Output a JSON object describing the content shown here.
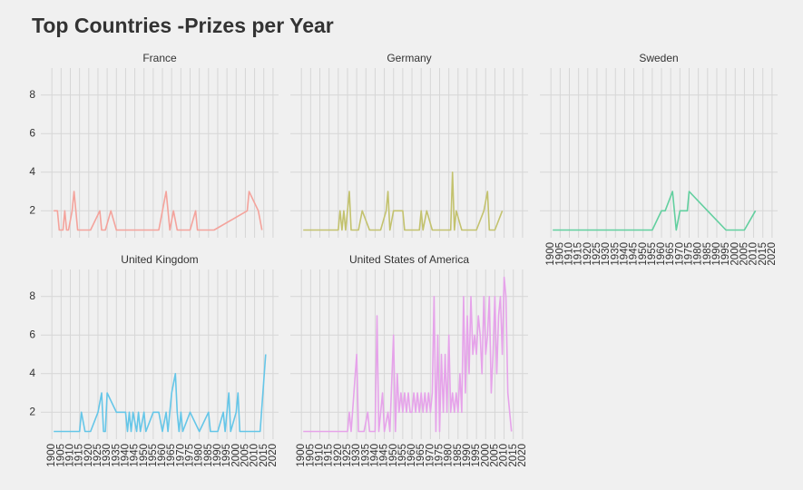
{
  "title": "Top Countries -Prizes per Year",
  "chart_data": [
    {
      "type": "line",
      "title": "France",
      "color": "#f4a39c",
      "x": [
        1901,
        1903,
        1904,
        1906,
        1907,
        1908,
        1909,
        1911,
        1912,
        1913,
        1914,
        1920,
        1921,
        1926,
        1927,
        1928,
        1929,
        1932,
        1935,
        1958,
        1962,
        1964,
        1966,
        1968,
        1970,
        1975,
        1978,
        1979,
        1983,
        1988,
        2006,
        2007,
        2012,
        2014
      ],
      "values": [
        2,
        2,
        1,
        1,
        2,
        1,
        1,
        2,
        3,
        2,
        1,
        1,
        1,
        2,
        1,
        1,
        1,
        2,
        1,
        1,
        3,
        1,
        2,
        1,
        1,
        1,
        2,
        1,
        1,
        1,
        2,
        3,
        2,
        1
      ],
      "xlim": [
        1894,
        2023
      ],
      "ylim": [
        0.6,
        9.4
      ],
      "xticks": [
        1900,
        1905,
        1910,
        1915,
        1920,
        1925,
        1930,
        1935,
        1940,
        1945,
        1950,
        1955,
        1960,
        1965,
        1970,
        1975,
        1980,
        1985,
        1990,
        1995,
        2000,
        2005,
        2010,
        2015,
        2020
      ],
      "yticks": [
        2,
        4,
        6,
        8
      ],
      "grid": true
    },
    {
      "type": "line",
      "title": "Germany",
      "color": "#c3c26e",
      "x": [
        1901,
        1920,
        1921,
        1922,
        1923,
        1924,
        1925,
        1926,
        1927,
        1931,
        1933,
        1937,
        1943,
        1946,
        1947,
        1948,
        1950,
        1953,
        1955,
        1956,
        1964,
        1965,
        1966,
        1968,
        1971,
        1974,
        1981,
        1982,
        1983,
        1984,
        1987,
        1995,
        1999,
        2001,
        2002,
        2005,
        2009
      ],
      "values": [
        1,
        1,
        2,
        1,
        2,
        1,
        2,
        3,
        1,
        1,
        2,
        1,
        1,
        2,
        3,
        1,
        2,
        2,
        2,
        1,
        1,
        2,
        1,
        2,
        1,
        1,
        1,
        4,
        1,
        2,
        1,
        1,
        2,
        3,
        1,
        1,
        2
      ],
      "xlim": [
        1894,
        2023
      ],
      "ylim": [
        0.6,
        9.4
      ],
      "xticks": [
        1900,
        1905,
        1910,
        1915,
        1920,
        1925,
        1930,
        1935,
        1940,
        1945,
        1950,
        1955,
        1960,
        1965,
        1970,
        1975,
        1980,
        1985,
        1990,
        1995,
        2000,
        2005,
        2010,
        2015,
        2020
      ],
      "yticks": [
        2,
        4,
        6,
        8
      ],
      "grid": true
    },
    {
      "type": "line",
      "title": "Sweden",
      "color": "#62cf9f",
      "x": [
        1901,
        1955,
        1960,
        1962,
        1966,
        1968,
        1970,
        1974,
        1975,
        1985,
        1995,
        2005,
        2011
      ],
      "values": [
        1,
        1,
        2,
        2,
        3,
        1,
        2,
        2,
        3,
        2,
        1,
        1,
        2
      ],
      "xlim": [
        1894,
        2023
      ],
      "ylim": [
        0.6,
        9.4
      ],
      "xticks": [
        1900,
        1905,
        1910,
        1915,
        1920,
        1925,
        1930,
        1935,
        1940,
        1945,
        1950,
        1955,
        1960,
        1965,
        1970,
        1975,
        1980,
        1985,
        1990,
        1995,
        2000,
        2005,
        2010,
        2015,
        2020
      ],
      "yticks": [
        2,
        4,
        6,
        8
      ],
      "grid": true
    },
    {
      "type": "line",
      "title": "United Kingdom",
      "color": "#65c6e8",
      "x": [
        1901,
        1915,
        1916,
        1918,
        1921,
        1925,
        1927,
        1928,
        1929,
        1930,
        1935,
        1940,
        1941,
        1942,
        1943,
        1944,
        1946,
        1947,
        1948,
        1950,
        1951,
        1955,
        1958,
        1960,
        1962,
        1963,
        1965,
        1967,
        1968,
        1969,
        1970,
        1971,
        1975,
        1980,
        1985,
        1986,
        1990,
        1993,
        1994,
        1996,
        1997,
        2000,
        2001,
        2002,
        2013,
        2016
      ],
      "values": [
        1,
        1,
        2,
        1,
        1,
        2,
        3,
        1,
        1,
        3,
        2,
        2,
        1,
        2,
        1,
        2,
        1,
        2,
        1,
        2,
        1,
        2,
        2,
        1,
        2,
        1,
        3,
        4,
        2,
        1,
        2,
        1,
        2,
        1,
        2,
        1,
        1,
        2,
        1,
        3,
        1,
        2,
        3,
        1,
        1,
        5
      ],
      "xlim": [
        1894,
        2023
      ],
      "ylim": [
        0.6,
        9.4
      ],
      "xticks": [
        1900,
        1905,
        1910,
        1915,
        1920,
        1925,
        1930,
        1935,
        1940,
        1945,
        1950,
        1955,
        1960,
        1965,
        1970,
        1975,
        1980,
        1985,
        1990,
        1995,
        2000,
        2005,
        2010,
        2015,
        2020
      ],
      "yticks": [
        2,
        4,
        6,
        8
      ],
      "grid": true
    },
    {
      "type": "line",
      "title": "United States of America",
      "color": "#e6a3ea",
      "x": [
        1901,
        1925,
        1926,
        1927,
        1930,
        1931,
        1934,
        1936,
        1937,
        1940,
        1941,
        1942,
        1944,
        1945,
        1947,
        1948,
        1950,
        1951,
        1952,
        1953,
        1954,
        1955,
        1956,
        1957,
        1958,
        1959,
        1960,
        1961,
        1962,
        1963,
        1964,
        1965,
        1966,
        1967,
        1968,
        1969,
        1970,
        1971,
        1972,
        1973,
        1974,
        1975,
        1976,
        1977,
        1978,
        1979,
        1980,
        1981,
        1982,
        1983,
        1984,
        1985,
        1986,
        1987,
        1988,
        1989,
        1990,
        1991,
        1992,
        1993,
        1994,
        1995,
        1996,
        1997,
        1998,
        1999,
        2000,
        2001,
        2002,
        2003,
        2004,
        2005,
        2006,
        2007,
        2008,
        2009,
        2010,
        2011,
        2012,
        2013,
        2014
      ],
      "values": [
        1,
        1,
        2,
        1,
        5,
        1,
        1,
        2,
        1,
        1,
        7,
        1,
        3,
        1,
        2,
        1,
        6,
        1,
        4,
        2,
        3,
        2,
        3,
        2,
        3,
        2,
        2,
        3,
        2,
        3,
        2,
        3,
        2,
        3,
        2,
        3,
        2,
        3,
        8,
        1,
        6,
        1,
        5,
        2,
        5,
        2,
        6,
        2,
        3,
        2,
        3,
        2,
        4,
        2,
        8,
        3,
        7,
        4,
        8,
        5,
        6,
        5,
        7,
        6,
        4,
        8,
        5,
        6,
        8,
        3,
        5,
        8,
        4,
        7,
        8,
        5,
        9,
        8,
        3,
        2,
        1
      ],
      "xlim": [
        1894,
        2023
      ],
      "ylim": [
        0.6,
        9.4
      ],
      "xticks": [
        1900,
        1905,
        1910,
        1915,
        1920,
        1925,
        1930,
        1935,
        1940,
        1945,
        1950,
        1955,
        1960,
        1965,
        1970,
        1975,
        1980,
        1985,
        1990,
        1995,
        2000,
        2005,
        2010,
        2015,
        2020
      ],
      "yticks": [
        2,
        4,
        6,
        8
      ],
      "grid": true
    }
  ]
}
